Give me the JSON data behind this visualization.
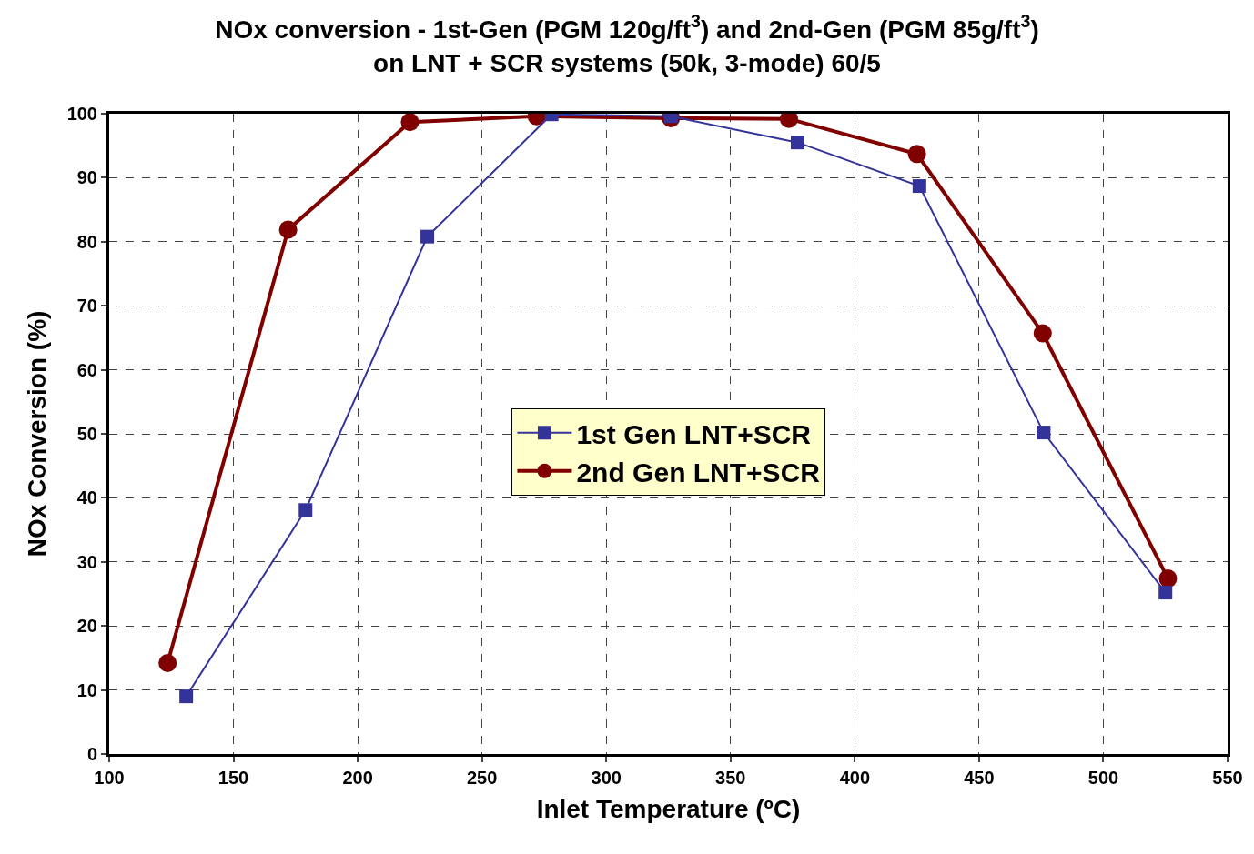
{
  "chart_data": {
    "type": "line",
    "title": "NOx conversion - 1st-Gen (PGM 120g/ft$^{3}$) and 2nd-Gen (PGM 85g/ft$^{3}$)\non LNT + SCR systems (50k, 3-mode) 60/5",
    "xlabel": "Inlet Temperature (ºC)",
    "ylabel": "NOx Conversion (%)",
    "xlim": [
      100,
      550
    ],
    "xticks": [
      100,
      150,
      200,
      250,
      300,
      350,
      400,
      450,
      500,
      550
    ],
    "ylim": [
      0,
      100
    ],
    "yticks": [
      0,
      10,
      20,
      30,
      40,
      50,
      60,
      70,
      80,
      90,
      100
    ],
    "grid": true,
    "legend": "center",
    "line_style": "solid",
    "series": [
      {
        "name": "1st Gen LNT+SCR",
        "color": "#333399",
        "marker": "square",
        "x": [
          131,
          179,
          228,
          278,
          326,
          377,
          426,
          476,
          525
        ],
        "values": [
          9.0,
          38.1,
          80.8,
          99.9,
          99.6,
          95.5,
          88.7,
          50.2,
          25.2
        ]
      },
      {
        "name": "2nd Gen LNT+SCR",
        "color": "#800000",
        "marker": "circle",
        "x": [
          123.5,
          172,
          221,
          272,
          326,
          373.5,
          425,
          475.6,
          526
        ],
        "values": [
          14.2,
          81.9,
          98.7,
          99.6,
          99.3,
          99.2,
          93.7,
          65.7,
          27.4
        ]
      }
    ]
  }
}
